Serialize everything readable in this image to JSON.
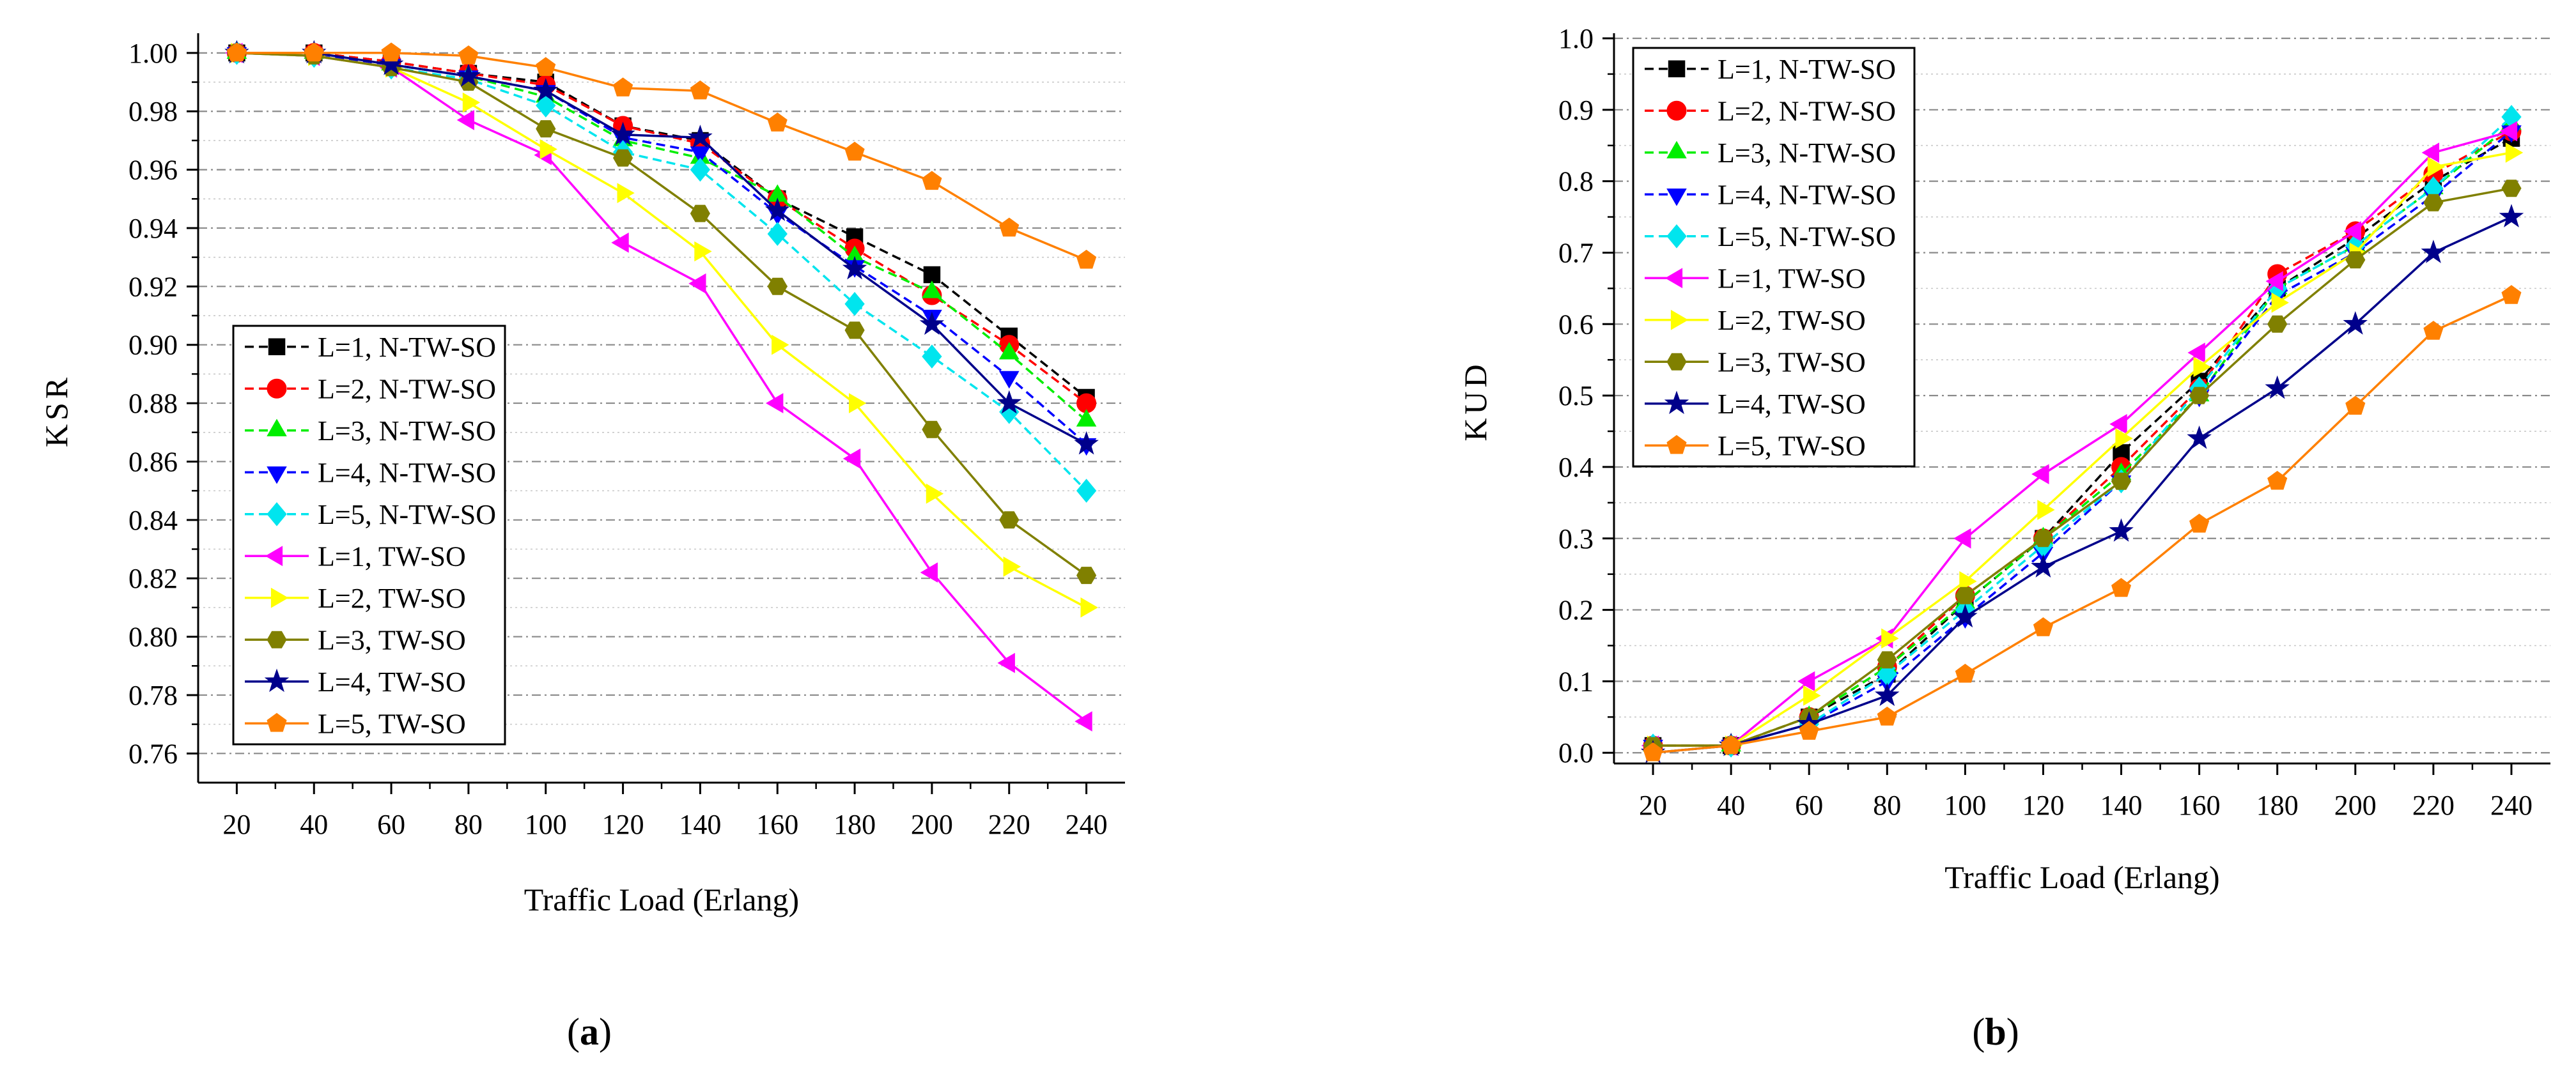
{
  "chart_data": [
    {
      "type": "line",
      "panel_label": "(a)",
      "panel_letter": "a",
      "title": "",
      "xlabel": "Traffic Load (Erlang)",
      "ylabel": "KSR",
      "x": [
        20,
        40,
        60,
        80,
        100,
        120,
        140,
        160,
        180,
        200,
        220,
        240
      ],
      "xlim": [
        10,
        250
      ],
      "ylim": [
        0.75,
        1.005
      ],
      "yticks": [
        0.76,
        0.78,
        0.8,
        0.82,
        0.84,
        0.86,
        0.88,
        0.9,
        0.92,
        0.94,
        0.96,
        0.98,
        1.0
      ],
      "ytick_labels": [
        "0.76",
        "0.78",
        "0.80",
        "0.82",
        "0.84",
        "0.86",
        "0.88",
        "0.90",
        "0.92",
        "0.94",
        "0.96",
        "0.98",
        "1.00"
      ],
      "xtick_labels": [
        "20",
        "40",
        "60",
        "80",
        "100",
        "120",
        "140",
        "160",
        "180",
        "200",
        "220",
        "240"
      ],
      "grid": true,
      "legend_position": "bottom-left",
      "series": [
        {
          "name": "L=1, N-TW-SO",
          "color": "#000000",
          "dashed": true,
          "marker": "square",
          "values": [
            1.0,
            1.0,
            0.997,
            0.993,
            0.99,
            0.975,
            0.97,
            0.95,
            0.937,
            0.924,
            0.903,
            0.882
          ]
        },
        {
          "name": "L=2, N-TW-SO",
          "color": "#ff0000",
          "dashed": true,
          "marker": "circle",
          "values": [
            1.0,
            1.0,
            0.997,
            0.993,
            0.989,
            0.975,
            0.969,
            0.95,
            0.933,
            0.917,
            0.9,
            0.88
          ]
        },
        {
          "name": "L=3, N-TW-SO",
          "color": "#00ee00",
          "dashed": true,
          "marker": "triangle-up",
          "values": [
            1.0,
            1.0,
            0.996,
            0.992,
            0.985,
            0.97,
            0.964,
            0.951,
            0.93,
            0.918,
            0.897,
            0.874
          ]
        },
        {
          "name": "L=4, N-TW-SO",
          "color": "#0000ff",
          "dashed": true,
          "marker": "triangle-down",
          "values": [
            1.0,
            0.999,
            0.996,
            0.992,
            0.987,
            0.971,
            0.966,
            0.945,
            0.927,
            0.91,
            0.889,
            0.866
          ]
        },
        {
          "name": "L=5, N-TW-SO",
          "color": "#00e5ee",
          "dashed": true,
          "marker": "diamond",
          "values": [
            1.0,
            0.999,
            0.995,
            0.991,
            0.982,
            0.966,
            0.96,
            0.938,
            0.914,
            0.896,
            0.877,
            0.85
          ]
        },
        {
          "name": "L=1, TW-SO",
          "color": "#ff00ff",
          "dashed": false,
          "marker": "triangle-left",
          "values": [
            1.0,
            0.999,
            0.995,
            0.977,
            0.965,
            0.935,
            0.921,
            0.88,
            0.861,
            0.822,
            0.791,
            0.771
          ]
        },
        {
          "name": "L=2, TW-SO",
          "color": "#ffff00",
          "dashed": false,
          "marker": "triangle-right",
          "values": [
            1.0,
            0.999,
            0.995,
            0.983,
            0.967,
            0.952,
            0.932,
            0.9,
            0.88,
            0.849,
            0.824,
            0.81
          ]
        },
        {
          "name": "L=3, TW-SO",
          "color": "#808000",
          "dashed": false,
          "marker": "hexagon",
          "values": [
            1.0,
            0.999,
            0.995,
            0.99,
            0.974,
            0.964,
            0.945,
            0.92,
            0.905,
            0.871,
            0.84,
            0.821
          ]
        },
        {
          "name": "L=4, TW-SO",
          "color": "#00008b",
          "dashed": false,
          "marker": "star",
          "values": [
            1.0,
            1.0,
            0.996,
            0.992,
            0.987,
            0.972,
            0.971,
            0.946,
            0.926,
            0.907,
            0.88,
            0.866
          ]
        },
        {
          "name": "L=5, TW-SO",
          "color": "#ff8000",
          "dashed": false,
          "marker": "pentagon",
          "values": [
            1.0,
            1.0,
            1.0,
            0.999,
            0.995,
            0.988,
            0.987,
            0.976,
            0.966,
            0.956,
            0.94,
            0.929
          ]
        }
      ]
    },
    {
      "type": "line",
      "panel_label": "(b)",
      "panel_letter": "b",
      "title": "",
      "xlabel": "Traffic Load (Erlang)",
      "ylabel": "KUD",
      "x": [
        20,
        40,
        60,
        80,
        100,
        120,
        140,
        160,
        180,
        200,
        220,
        240
      ],
      "xlim": [
        10,
        250
      ],
      "ylim": [
        -0.015,
        1.0
      ],
      "yticks": [
        0.0,
        0.1,
        0.2,
        0.3,
        0.4,
        0.5,
        0.6,
        0.7,
        0.8,
        0.9,
        1.0
      ],
      "ytick_labels": [
        "0.0",
        "0.1",
        "0.2",
        "0.3",
        "0.4",
        "0.5",
        "0.6",
        "0.7",
        "0.8",
        "0.9",
        "1.0"
      ],
      "xtick_labels": [
        "20",
        "40",
        "60",
        "80",
        "100",
        "120",
        "140",
        "160",
        "180",
        "200",
        "220",
        "240"
      ],
      "grid": true,
      "legend_position": "top-left",
      "series": [
        {
          "name": "L=1, N-TW-SO",
          "color": "#000000",
          "dashed": true,
          "marker": "square",
          "values": [
            0.01,
            0.01,
            0.05,
            0.11,
            0.21,
            0.3,
            0.42,
            0.52,
            0.65,
            0.72,
            0.8,
            0.86
          ]
        },
        {
          "name": "L=2, N-TW-SO",
          "color": "#ff0000",
          "dashed": true,
          "marker": "circle",
          "values": [
            0.01,
            0.01,
            0.05,
            0.12,
            0.22,
            0.3,
            0.4,
            0.51,
            0.67,
            0.73,
            0.81,
            0.87
          ]
        },
        {
          "name": "L=3, N-TW-SO",
          "color": "#00ee00",
          "dashed": true,
          "marker": "triangle-up",
          "values": [
            0.01,
            0.01,
            0.05,
            0.12,
            0.21,
            0.3,
            0.39,
            0.5,
            0.65,
            0.71,
            0.79,
            0.88
          ]
        },
        {
          "name": "L=4, N-TW-SO",
          "color": "#0000ff",
          "dashed": true,
          "marker": "triangle-down",
          "values": [
            0.01,
            0.01,
            0.04,
            0.1,
            0.19,
            0.28,
            0.38,
            0.5,
            0.64,
            0.7,
            0.78,
            0.87
          ]
        },
        {
          "name": "L=5, N-TW-SO",
          "color": "#00e5ee",
          "dashed": true,
          "marker": "diamond",
          "values": [
            0.01,
            0.01,
            0.04,
            0.11,
            0.2,
            0.29,
            0.38,
            0.51,
            0.65,
            0.71,
            0.79,
            0.89
          ]
        },
        {
          "name": "L=1, TW-SO",
          "color": "#ff00ff",
          "dashed": false,
          "marker": "triangle-left",
          "values": [
            0.01,
            0.01,
            0.1,
            0.16,
            0.3,
            0.39,
            0.46,
            0.56,
            0.66,
            0.73,
            0.84,
            0.87
          ]
        },
        {
          "name": "L=2, TW-SO",
          "color": "#ffff00",
          "dashed": false,
          "marker": "triangle-right",
          "values": [
            0.01,
            0.01,
            0.08,
            0.16,
            0.24,
            0.34,
            0.44,
            0.54,
            0.63,
            0.7,
            0.82,
            0.84
          ]
        },
        {
          "name": "L=3, TW-SO",
          "color": "#808000",
          "dashed": false,
          "marker": "hexagon",
          "values": [
            0.01,
            0.01,
            0.05,
            0.13,
            0.22,
            0.3,
            0.38,
            0.5,
            0.6,
            0.69,
            0.77,
            0.79
          ]
        },
        {
          "name": "L=4, TW-SO",
          "color": "#00008b",
          "dashed": false,
          "marker": "star",
          "values": [
            0.0,
            0.01,
            0.04,
            0.08,
            0.19,
            0.26,
            0.31,
            0.44,
            0.51,
            0.6,
            0.7,
            0.75
          ]
        },
        {
          "name": "L=5, TW-SO",
          "color": "#ff8000",
          "dashed": false,
          "marker": "pentagon",
          "values": [
            0.0,
            0.01,
            0.03,
            0.05,
            0.11,
            0.175,
            0.23,
            0.32,
            0.38,
            0.485,
            0.59,
            0.64
          ]
        }
      ]
    }
  ]
}
